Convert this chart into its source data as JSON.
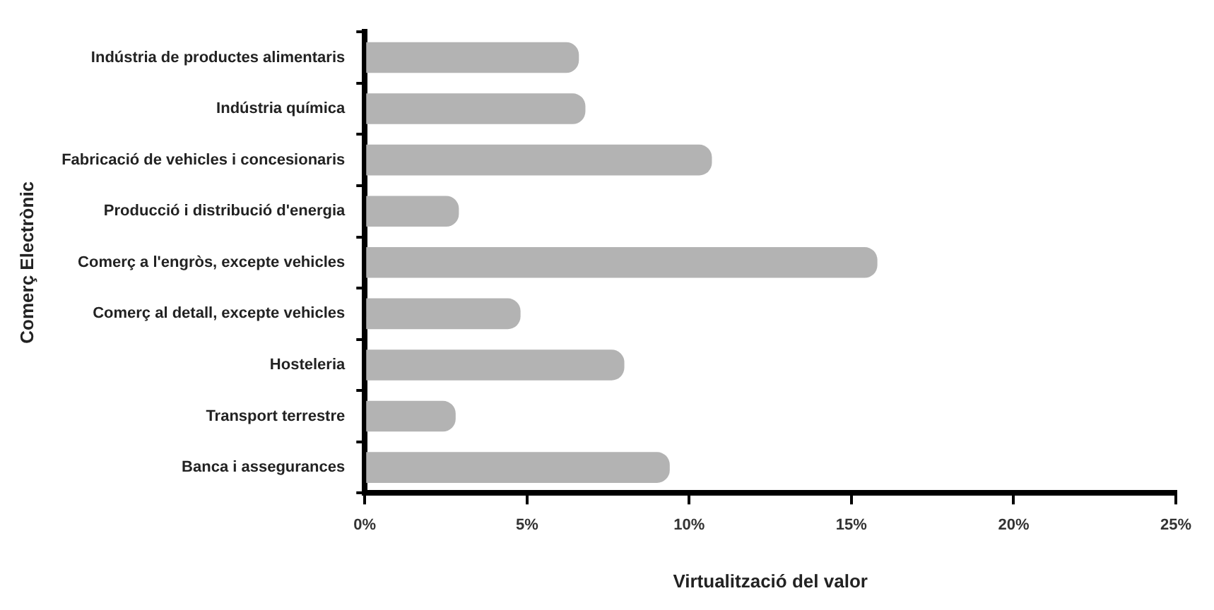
{
  "chart_data": {
    "type": "bar",
    "orientation": "horizontal",
    "xlabel": "Virtualització del valor",
    "ylabel": "Comerç Electrònic",
    "categories": [
      "Indústria de productes alimentaris",
      "Indústria química",
      "Fabricació de vehicles i concesionaris",
      "Producció i distribució d'energia",
      "Comerç a l'engròs, excepte vehicles",
      "Comerç al detall, excepte vehicles",
      "Hosteleria",
      "Transport terrestre",
      "Banca i assegurances"
    ],
    "series": [
      {
        "color": "#b3b3b3",
        "values": [
          6.6,
          6.8,
          10.7,
          2.9,
          15.8,
          4.8,
          8.0,
          2.8,
          9.4
        ]
      }
    ],
    "xlim": [
      0,
      25
    ],
    "xticks": [
      {
        "value": 0,
        "label": "0%"
      },
      {
        "value": 5,
        "label": "5%"
      },
      {
        "value": 10,
        "label": "10%"
      },
      {
        "value": 15,
        "label": "15%"
      },
      {
        "value": 20,
        "label": "20%"
      },
      {
        "value": 25,
        "label": "25%"
      }
    ],
    "grid": false,
    "legend": false
  }
}
